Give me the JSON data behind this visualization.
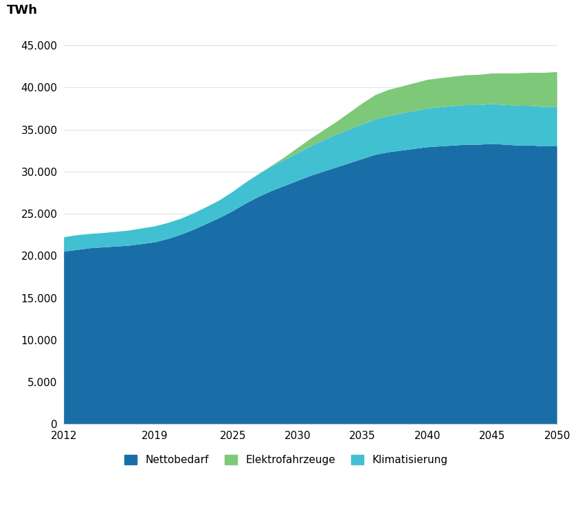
{
  "years": [
    2012,
    2013,
    2014,
    2015,
    2016,
    2017,
    2018,
    2019,
    2020,
    2021,
    2022,
    2023,
    2024,
    2025,
    2026,
    2027,
    2028,
    2029,
    2030,
    2031,
    2032,
    2033,
    2034,
    2035,
    2036,
    2037,
    2038,
    2039,
    2040,
    2041,
    2042,
    2043,
    2044,
    2045,
    2046,
    2047,
    2048,
    2049,
    2050
  ],
  "nettobedarf": [
    20500,
    20700,
    20900,
    21000,
    21100,
    21200,
    21400,
    21600,
    22000,
    22500,
    23100,
    23800,
    24500,
    25300,
    26200,
    27000,
    27700,
    28300,
    28900,
    29500,
    30000,
    30500,
    31000,
    31500,
    32000,
    32300,
    32500,
    32700,
    32900,
    33000,
    33100,
    33200,
    33200,
    33300,
    33200,
    33100,
    33100,
    33000,
    33000
  ],
  "klimatisierung": [
    1700,
    1750,
    1700,
    1700,
    1750,
    1800,
    1850,
    1900,
    1900,
    1900,
    1950,
    2000,
    2100,
    2300,
    2500,
    2700,
    2900,
    3100,
    3300,
    3500,
    3700,
    3900,
    4000,
    4100,
    4200,
    4300,
    4400,
    4500,
    4600,
    4650,
    4680,
    4700,
    4700,
    4720,
    4720,
    4720,
    4700,
    4690,
    4680
  ],
  "elektrofahrzeuge": [
    0,
    0,
    0,
    0,
    0,
    0,
    0,
    0,
    0,
    0,
    0,
    0,
    0,
    0,
    0,
    0,
    100,
    300,
    600,
    900,
    1200,
    1500,
    2000,
    2500,
    2900,
    3100,
    3200,
    3300,
    3400,
    3450,
    3500,
    3550,
    3600,
    3650,
    3750,
    3850,
    3950,
    4050,
    4150
  ],
  "color_netto": "#1a6ea8",
  "color_klima": "#41c0d2",
  "color_elektro": "#7ec87a",
  "ylabel": "TWh",
  "yticks": [
    0,
    5000,
    10000,
    15000,
    20000,
    25000,
    30000,
    35000,
    40000,
    45000
  ],
  "xticks": [
    2012,
    2019,
    2025,
    2030,
    2035,
    2040,
    2045,
    2050
  ],
  "ylim": [
    0,
    47000
  ],
  "legend_labels": [
    "Nettobedarf",
    "Elektrofahrzeuge",
    "Klimatisierung"
  ],
  "legend_colors": [
    "#1a6ea8",
    "#7ec87a",
    "#41c0d2"
  ],
  "background_color": "#ffffff",
  "figsize": [
    8.45,
    7.35
  ],
  "dpi": 100
}
